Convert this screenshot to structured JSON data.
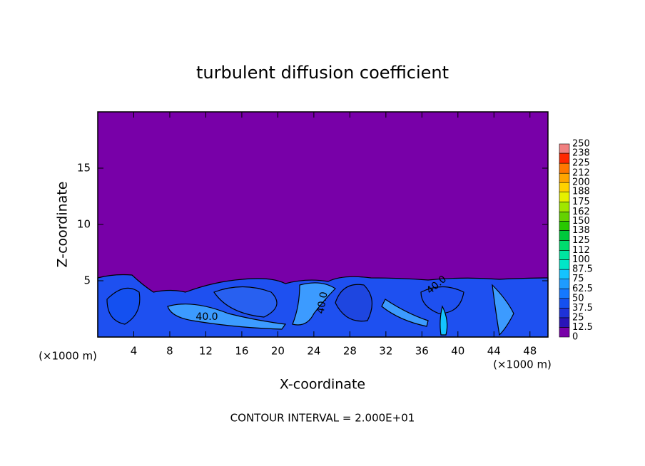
{
  "chart_data": {
    "type": "contour",
    "title": "turbulent diffusion coefficient",
    "x_label": "X-coordinate",
    "y_label": "Z-coordinate",
    "x_unit_labels": [
      "(×1000 m)",
      "(×1000 m)"
    ],
    "footer": "CONTOUR INTERVAL = 2.000E+01",
    "contour_labels": [
      "40.0",
      "40.0",
      "40.0"
    ],
    "xlim": [
      0,
      50
    ],
    "xticks": [
      4,
      8,
      12,
      16,
      20,
      24,
      28,
      32,
      36,
      40,
      44,
      48
    ],
    "ylim": [
      0,
      20
    ],
    "yticks": [
      5,
      10,
      15
    ],
    "background_color": "#7800a8",
    "colorbar": {
      "levels": [
        0,
        12.5,
        25,
        37.5,
        50,
        62.5,
        75,
        87.5,
        100,
        112,
        125,
        138,
        150,
        162,
        175,
        188,
        200,
        212,
        225,
        238,
        250
      ],
      "colors": [
        "#7800a8",
        "#2a14b8",
        "#1e32d8",
        "#1450f0",
        "#1478ff",
        "#1e9bff",
        "#14c3ff",
        "#00e6c8",
        "#00e6a0",
        "#00dc6e",
        "#00c83c",
        "#28c800",
        "#64d200",
        "#a0e600",
        "#e6f000",
        "#ffd200",
        "#ffa500",
        "#ff7800",
        "#ff2800",
        "#f08080"
      ]
    }
  }
}
